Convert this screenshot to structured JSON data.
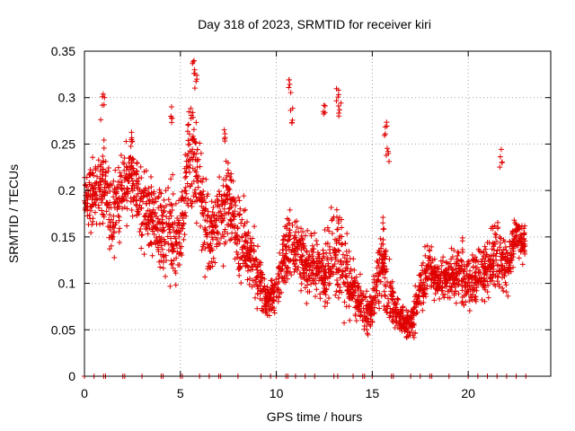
{
  "chart_data": {
    "type": "scatter",
    "title": "Day 318 of 2023, SRMTID for receiver kiri",
    "xlabel": "GPS time / hours",
    "ylabel": "SRMTID / TECUs",
    "xlim": [
      0,
      24.3
    ],
    "ylim": [
      0,
      0.35
    ],
    "x_ticks": [
      0,
      5,
      10,
      15,
      20
    ],
    "y_ticks": [
      0,
      0.05,
      0.1,
      0.15,
      0.2,
      0.25,
      0.3,
      0.35
    ],
    "x_tick_labels": [
      "0",
      "5",
      "10",
      "15",
      "20"
    ],
    "y_tick_labels": [
      "0",
      "0.05",
      "0.1",
      "0.15",
      "0.2",
      "0.25",
      "0.3",
      "0.35"
    ],
    "grid": true,
    "marker": "+",
    "series_color": "#e00000",
    "trend": [
      [
        0.0,
        0.19,
        0.02
      ],
      [
        0.5,
        0.2,
        0.04
      ],
      [
        1.0,
        0.21,
        0.05
      ],
      [
        1.5,
        0.17,
        0.04
      ],
      [
        2.0,
        0.2,
        0.04
      ],
      [
        2.5,
        0.22,
        0.04
      ],
      [
        3.0,
        0.18,
        0.04
      ],
      [
        3.5,
        0.17,
        0.04
      ],
      [
        4.0,
        0.16,
        0.05
      ],
      [
        4.5,
        0.16,
        0.05
      ],
      [
        5.0,
        0.15,
        0.05
      ],
      [
        5.5,
        0.24,
        0.06
      ],
      [
        6.0,
        0.2,
        0.05
      ],
      [
        6.5,
        0.15,
        0.04
      ],
      [
        7.0,
        0.17,
        0.04
      ],
      [
        7.5,
        0.19,
        0.04
      ],
      [
        8.0,
        0.15,
        0.04
      ],
      [
        8.5,
        0.14,
        0.03
      ],
      [
        9.0,
        0.11,
        0.03
      ],
      [
        9.5,
        0.08,
        0.02
      ],
      [
        10.0,
        0.09,
        0.02
      ],
      [
        10.5,
        0.14,
        0.04
      ],
      [
        11.0,
        0.14,
        0.03
      ],
      [
        11.5,
        0.12,
        0.03
      ],
      [
        12.0,
        0.12,
        0.03
      ],
      [
        12.5,
        0.11,
        0.03
      ],
      [
        13.0,
        0.14,
        0.05
      ],
      [
        13.5,
        0.12,
        0.05
      ],
      [
        14.0,
        0.09,
        0.03
      ],
      [
        14.5,
        0.07,
        0.02
      ],
      [
        15.0,
        0.07,
        0.02
      ],
      [
        15.5,
        0.13,
        0.05
      ],
      [
        16.0,
        0.08,
        0.03
      ],
      [
        16.5,
        0.06,
        0.015
      ],
      [
        17.0,
        0.055,
        0.015
      ],
      [
        17.5,
        0.09,
        0.03
      ],
      [
        18.0,
        0.12,
        0.03
      ],
      [
        18.5,
        0.1,
        0.02
      ],
      [
        19.0,
        0.11,
        0.02
      ],
      [
        19.5,
        0.11,
        0.03
      ],
      [
        20.0,
        0.1,
        0.03
      ],
      [
        20.5,
        0.11,
        0.03
      ],
      [
        21.0,
        0.12,
        0.03
      ],
      [
        21.5,
        0.13,
        0.04
      ],
      [
        22.0,
        0.12,
        0.03
      ],
      [
        22.5,
        0.15,
        0.02
      ],
      [
        23.0,
        0.14,
        0.02
      ]
    ],
    "highlights": [
      [
        1.0,
        0.31
      ],
      [
        5.7,
        0.34
      ],
      [
        5.8,
        0.33
      ],
      [
        10.7,
        0.32
      ],
      [
        10.8,
        0.29
      ],
      [
        12.5,
        0.3
      ],
      [
        13.2,
        0.31
      ],
      [
        13.3,
        0.3
      ],
      [
        15.7,
        0.275
      ],
      [
        21.7,
        0.245
      ],
      [
        4.5,
        0.29
      ],
      [
        2.5,
        0.27
      ],
      [
        7.3,
        0.27
      ],
      [
        15.8,
        0.25
      ]
    ],
    "zero_line_points": [
      0.0,
      0.5,
      1.0,
      1.1,
      2.0,
      2.1,
      3.0,
      4.0,
      4.1,
      5.0,
      5.1,
      6.0,
      6.5,
      7.0,
      7.1,
      8.0,
      9.2,
      9.7,
      10.0,
      10.5,
      10.6,
      11.0,
      11.5,
      12.0,
      13.0,
      13.2,
      14.0,
      14.5,
      14.6,
      15.0,
      16.0,
      16.1,
      17.0,
      17.5,
      18.0,
      18.1,
      19.0,
      20.0,
      20.5,
      21.0,
      21.5,
      22.0,
      22.5,
      23.0
    ],
    "points_per_bin": 60
  }
}
